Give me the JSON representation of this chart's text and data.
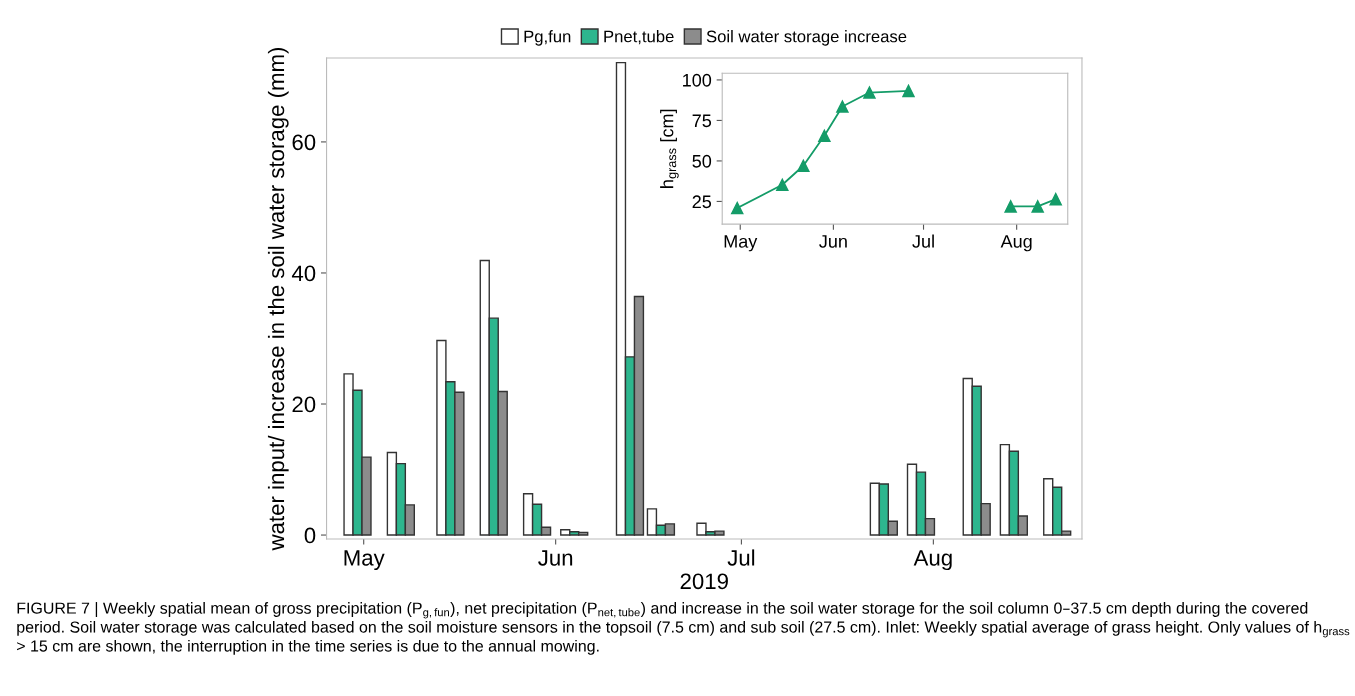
{
  "chart_data": [
    {
      "type": "bar",
      "xlabel": "2019",
      "ylabel": "water input/ increase in the soil water storage (mm)",
      "x": [
        "2019-04-30",
        "2019-05-07",
        "2019-05-15",
        "2019-05-22",
        "2019-05-29",
        "2019-06-04",
        "2019-06-13",
        "2019-06-18",
        "2019-06-26",
        "2019-07-24",
        "2019-07-30",
        "2019-08-08",
        "2019-08-14",
        "2019-08-21"
      ],
      "series": [
        {
          "name": "Pg,fun",
          "color": "#ffffff",
          "values": [
            24.6,
            12.6,
            29.7,
            41.9,
            6.3,
            0.8,
            72.1,
            4.0,
            1.8,
            7.9,
            10.8,
            23.9,
            13.8,
            8.6
          ]
        },
        {
          "name": "Pnet,tube",
          "color": "#2db68e",
          "values": [
            22.1,
            10.9,
            23.4,
            33.1,
            4.7,
            0.5,
            27.2,
            1.5,
            0.5,
            7.8,
            9.6,
            22.7,
            12.8,
            7.3
          ]
        },
        {
          "name": "Soil water storage increase",
          "color": "#8c8c8c",
          "values": [
            11.9,
            4.6,
            21.8,
            21.9,
            1.2,
            0.4,
            36.4,
            1.7,
            0.6,
            2.1,
            2.5,
            4.8,
            2.9,
            0.6
          ]
        }
      ],
      "xlim": [
        "2019-04-25",
        "2019-08-25"
      ],
      "xticks": [
        {
          "value": "2019-05-01",
          "label": "May"
        },
        {
          "value": "2019-06-01",
          "label": "Jun"
        },
        {
          "value": "2019-07-01",
          "label": "Jul"
        },
        {
          "value": "2019-08-01",
          "label": "Aug"
        }
      ],
      "ylim": [
        -0.6,
        72.8
      ],
      "yticks": [
        0,
        20,
        40,
        60
      ],
      "legend": "top",
      "grid": false,
      "annotations": [
        "FIGURE 7 | Weekly spatial mean of gross precipitation (P$_{g,fun}$), net precipitation (P$_{net,tube}$) and increase in the soil water storage for the soil column 0–37.5 cm depth during the covered period. Soil water storage was calculated based on the soil moisture sensors in the topsoil (7.5 cm) and sub soil (27.5 cm). Inlet: Weekly spatial average of grass height. Only values of h$_{grass}$ > 15 cm are shown, the interruption in the time series is due to the annual mowing."
      ]
    },
    {
      "type": "line",
      "ylabel": "h$_{grass}$ [cm]",
      "marker": "triangle",
      "line_style": "solid",
      "grid": false,
      "series": [
        {
          "color": "#149c68",
          "x": [
            "2019-04-30",
            "2019-05-15",
            "2019-05-22",
            "2019-05-29",
            "2019-06-04",
            "2019-06-13",
            "2019-06-26"
          ],
          "values": [
            20.9,
            35.3,
            47.0,
            65.5,
            83.6,
            92.2,
            93.2
          ]
        },
        {
          "color": "#149c68",
          "x": [
            "2019-07-30",
            "2019-08-08",
            "2019-08-14"
          ],
          "values": [
            21.9,
            21.9,
            26.4
          ]
        }
      ],
      "xlim": [
        "2019-04-25",
        "2019-08-18"
      ],
      "xticks": [
        {
          "value": "2019-05-01",
          "label": "May"
        },
        {
          "value": "2019-06-01",
          "label": "Jun"
        },
        {
          "value": "2019-07-01",
          "label": "Jul"
        },
        {
          "value": "2019-08-01",
          "label": "Aug"
        }
      ],
      "ylim": [
        11.0,
        104.1
      ],
      "yticks": [
        25,
        50,
        75,
        100
      ]
    }
  ]
}
